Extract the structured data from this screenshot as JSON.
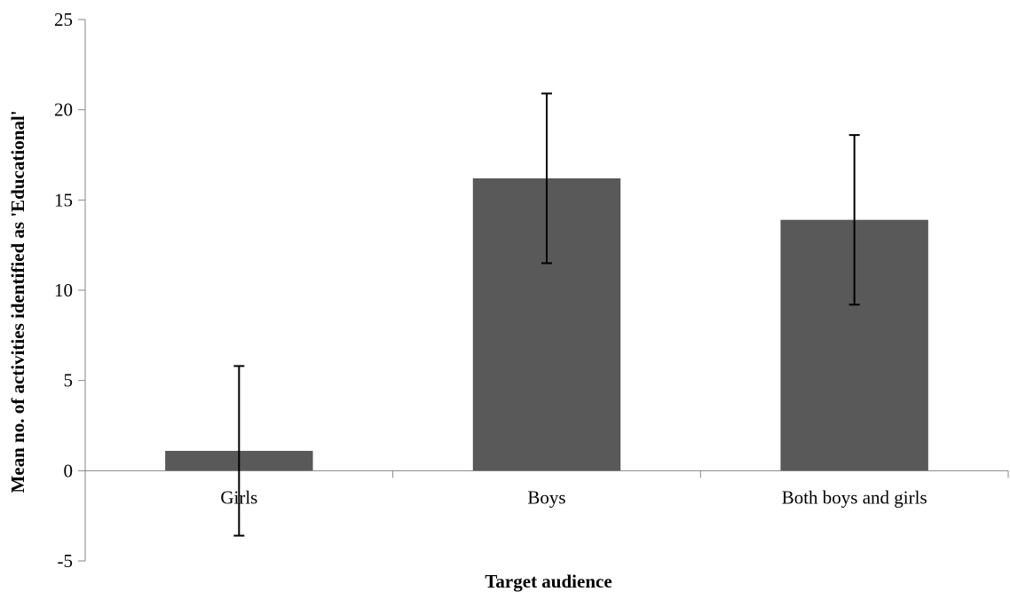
{
  "chart_data": {
    "type": "bar",
    "title": "",
    "xlabel": "Target audience",
    "ylabel": "Mean no. of activities identified as 'Educational'",
    "categories": [
      "Girls",
      "Boys",
      "Both boys and girls"
    ],
    "values": [
      1.1,
      16.2,
      13.9
    ],
    "error": [
      4.7,
      4.7,
      4.7
    ],
    "ylim": [
      -5,
      25
    ],
    "yticks": [
      -5,
      0,
      5,
      10,
      15,
      20,
      25
    ],
    "grid": false,
    "legend": "none",
    "colors": {
      "bar": "#595959",
      "error_bar": "#000000",
      "axis": "#868686"
    }
  }
}
